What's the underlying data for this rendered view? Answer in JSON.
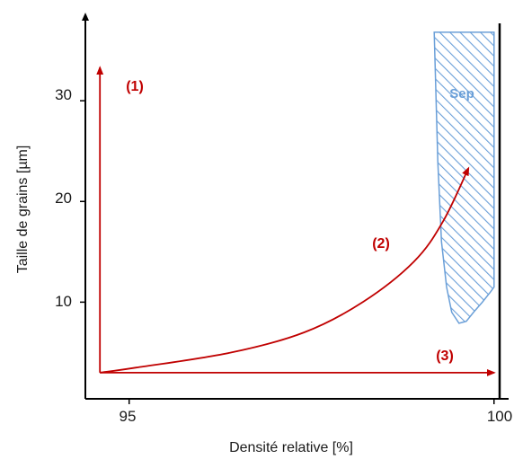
{
  "chart_data": {
    "type": "line",
    "xlabel": "Densité relative [%]",
    "ylabel": "Taille de grains [µm]",
    "x_ticks": [
      95,
      100
    ],
    "x_tick_labels": [
      "95",
      "100"
    ],
    "y_ticks": [
      10,
      20,
      30
    ],
    "y_tick_labels": [
      "10",
      "20",
      "30"
    ],
    "xlim": [
      94.4,
      100.2
    ],
    "ylim": [
      0.4,
      38.4
    ],
    "grid": false,
    "colors": {
      "axis": "#000000",
      "path": "#c00000",
      "region": "#6a9fd8",
      "region_label": "#6a9fd8"
    },
    "series": [
      {
        "label": "(1)",
        "x": [
          94.6,
          94.6
        ],
        "y": [
          3.0,
          33.3
        ]
      },
      {
        "label": "(2)",
        "x": [
          94.6,
          95.1,
          96.4,
          97.4,
          98.2,
          98.9,
          99.3,
          99.65
        ],
        "y": [
          3.0,
          3.5,
          5.0,
          7.0,
          10.0,
          14.0,
          18.0,
          23.3
        ]
      },
      {
        "label": "(3)",
        "x": [
          94.6,
          100.0
        ],
        "y": [
          3.0,
          3.0
        ]
      }
    ],
    "regions": [
      {
        "label": "Sep",
        "boundary_x": [
          99.18,
          99.23,
          99.28,
          99.35,
          99.42,
          99.52,
          99.62,
          99.72,
          99.84,
          99.95,
          100.0,
          100.0,
          99.18
        ],
        "boundary_y": [
          36.8,
          24.0,
          16.0,
          11.5,
          9.0,
          7.9,
          8.1,
          9.0,
          10.0,
          11.0,
          11.5,
          36.8,
          36.8
        ]
      }
    ]
  }
}
